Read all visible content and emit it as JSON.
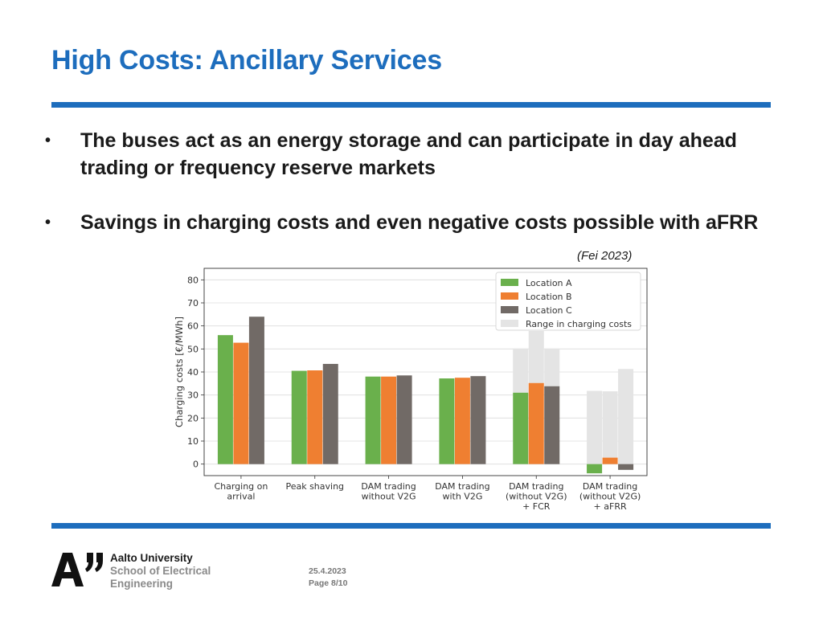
{
  "slide": {
    "title": "High Costs: Ancillary Services",
    "bullets": [
      "The buses act as an energy storage and can participate in day ahead trading or frequency reserve markets",
      "Savings in charging costs and even negative costs possible with aFRR"
    ],
    "bullet_marker": "•",
    "citation": "(Fei 2023)"
  },
  "chart_data": {
    "type": "bar",
    "title": "",
    "xlabel": "",
    "ylabel": "Charging costs [€/MWh]",
    "ylim": [
      -5,
      85
    ],
    "yticks": [
      0,
      10,
      20,
      30,
      40,
      50,
      60,
      70,
      80
    ],
    "grid": "horizontal",
    "legend_position": "top-right",
    "categories": [
      [
        "Charging on",
        "arrival"
      ],
      [
        "Peak shaving"
      ],
      [
        "DAM trading",
        "without V2G"
      ],
      [
        "DAM trading",
        "with V2G"
      ],
      [
        "DAM trading",
        "(without V2G)",
        "+ FCR"
      ],
      [
        "DAM trading",
        "(without V2G)",
        "+ aFRR"
      ]
    ],
    "series": [
      {
        "name": "Location A",
        "color": "#6ab04c",
        "values": [
          56,
          40.5,
          38,
          37.2,
          31,
          -4
        ]
      },
      {
        "name": "Location B",
        "color": "#ef7f31",
        "values": [
          52.7,
          40.7,
          38,
          37.5,
          35.2,
          2.8
        ]
      },
      {
        "name": "Location C",
        "color": "#716a66",
        "values": [
          64,
          43.5,
          38.5,
          38.2,
          33.8,
          -2.5
        ]
      }
    ],
    "range": {
      "name": "Range in charging costs",
      "color": "#e4e4e4",
      "low": [
        null,
        null,
        null,
        null,
        [
          31,
          35.2,
          33.8
        ],
        [
          -4,
          2.8,
          -2.5
        ]
      ],
      "high": [
        null,
        null,
        null,
        null,
        [
          50.2,
          57.8,
          50.2
        ],
        [
          31.8,
          31.6,
          41.3
        ]
      ]
    }
  },
  "footer": {
    "logo_text": "A”",
    "university": "Aalto University",
    "school_line1": "School of Electrical",
    "school_line2": "Engineering",
    "date": "25.4.2023",
    "page": "Page 8/10"
  }
}
